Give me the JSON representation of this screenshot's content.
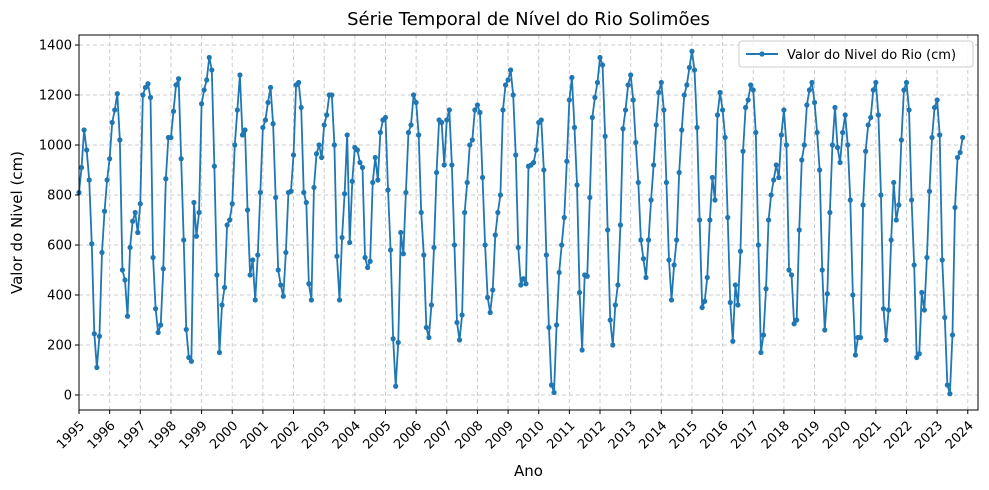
{
  "chart_data": {
    "type": "line",
    "title": "Série Temporal de Nível do Rio Solimões",
    "xlabel": "Ano",
    "ylabel": "Valor do Nivel (cm)",
    "x_tick_labels": [
      "1995",
      "1996",
      "1997",
      "1998",
      "1999",
      "2000",
      "2001",
      "2002",
      "2003",
      "2004",
      "2005",
      "2006",
      "2007",
      "2008",
      "2009",
      "2010",
      "2011",
      "2012",
      "2013",
      "2014",
      "2015",
      "2016",
      "2017",
      "2018",
      "2019",
      "2020",
      "2021",
      "2022",
      "2023",
      "2024"
    ],
    "y_ticks": [
      0,
      200,
      400,
      600,
      800,
      1000,
      1200,
      1400
    ],
    "xlim": [
      "1995-01",
      "2024-05"
    ],
    "ylim": [
      -60,
      1440
    ],
    "grid": true,
    "legend_position": "upper right",
    "colors": {
      "line": "#1f77b4",
      "grid": "#cccccc"
    },
    "series": [
      {
        "name": "Valor do Nivel do Rio (cm)",
        "start": "1995-01",
        "frequency": "monthly",
        "values": [
          810,
          910,
          1060,
          980,
          860,
          605,
          245,
          110,
          235,
          570,
          735,
          860,
          945,
          1090,
          1140,
          1205,
          1020,
          500,
          460,
          315,
          590,
          695,
          730,
          650,
          765,
          1200,
          1230,
          1245,
          1190,
          550,
          345,
          250,
          280,
          505,
          865,
          1030,
          1030,
          1135,
          1240,
          1265,
          945,
          620,
          262,
          150,
          135,
          770,
          635,
          730,
          1165,
          1220,
          1260,
          1350,
          1300,
          915,
          480,
          170,
          360,
          430,
          680,
          700,
          765,
          1000,
          1140,
          1280,
          1040,
          1060,
          740,
          480,
          540,
          380,
          560,
          810,
          1070,
          1100,
          1170,
          1230,
          1085,
          790,
          500,
          440,
          395,
          570,
          810,
          815,
          960,
          1240,
          1250,
          1150,
          810,
          770,
          445,
          380,
          830,
          965,
          1000,
          950,
          1080,
          1120,
          1200,
          1200,
          1000,
          555,
          380,
          630,
          805,
          1040,
          610,
          855,
          990,
          980,
          930,
          910,
          550,
          510,
          535,
          850,
          950,
          860,
          1050,
          1100,
          1110,
          820,
          580,
          225,
          35,
          210,
          650,
          565,
          810,
          1050,
          1080,
          1200,
          1170,
          1040,
          730,
          560,
          270,
          230,
          360,
          590,
          890,
          1100,
          1090,
          920,
          1100,
          1140,
          920,
          600,
          290,
          220,
          320,
          730,
          850,
          1000,
          1020,
          1140,
          1160,
          1130,
          870,
          600,
          390,
          330,
          420,
          640,
          730,
          800,
          1140,
          1240,
          1260,
          1300,
          1200,
          960,
          590,
          440,
          465,
          445,
          915,
          920,
          930,
          980,
          1090,
          1100,
          900,
          560,
          270,
          40,
          10,
          280,
          490,
          600,
          710,
          935,
          1180,
          1270,
          1070,
          840,
          410,
          180,
          480,
          475,
          790,
          1110,
          1190,
          1250,
          1350,
          1320,
          1035,
          660,
          300,
          200,
          360,
          440,
          680,
          1065,
          1140,
          1240,
          1280,
          1180,
          1010,
          850,
          620,
          545,
          470,
          620,
          780,
          920,
          1080,
          1210,
          1250,
          1140,
          850,
          540,
          380,
          520,
          620,
          890,
          1060,
          1200,
          1240,
          1310,
          1375,
          1300,
          1070,
          700,
          350,
          375,
          470,
          700,
          870,
          780,
          1120,
          1210,
          1140,
          1030,
          710,
          370,
          215,
          440,
          360,
          575,
          975,
          1150,
          1180,
          1240,
          1220,
          1050,
          600,
          170,
          240,
          425,
          700,
          800,
          860,
          920,
          870,
          1040,
          1140,
          1000,
          500,
          480,
          285,
          300,
          660,
          940,
          1000,
          1160,
          1220,
          1250,
          1170,
          1050,
          900,
          500,
          260,
          405,
          730,
          1000,
          1150,
          990,
          930,
          1050,
          1120,
          1000,
          780,
          400,
          160,
          230,
          230,
          760,
          975,
          1080,
          1110,
          1220,
          1250,
          1120,
          800,
          345,
          220,
          340,
          620,
          850,
          700,
          760,
          1020,
          1220,
          1250,
          1140,
          780,
          520,
          150,
          165,
          410,
          340,
          550,
          815,
          1030,
          1150,
          1180,
          1040,
          540,
          310,
          40,
          5,
          240,
          750,
          950,
          970,
          1030
        ]
      }
    ]
  }
}
